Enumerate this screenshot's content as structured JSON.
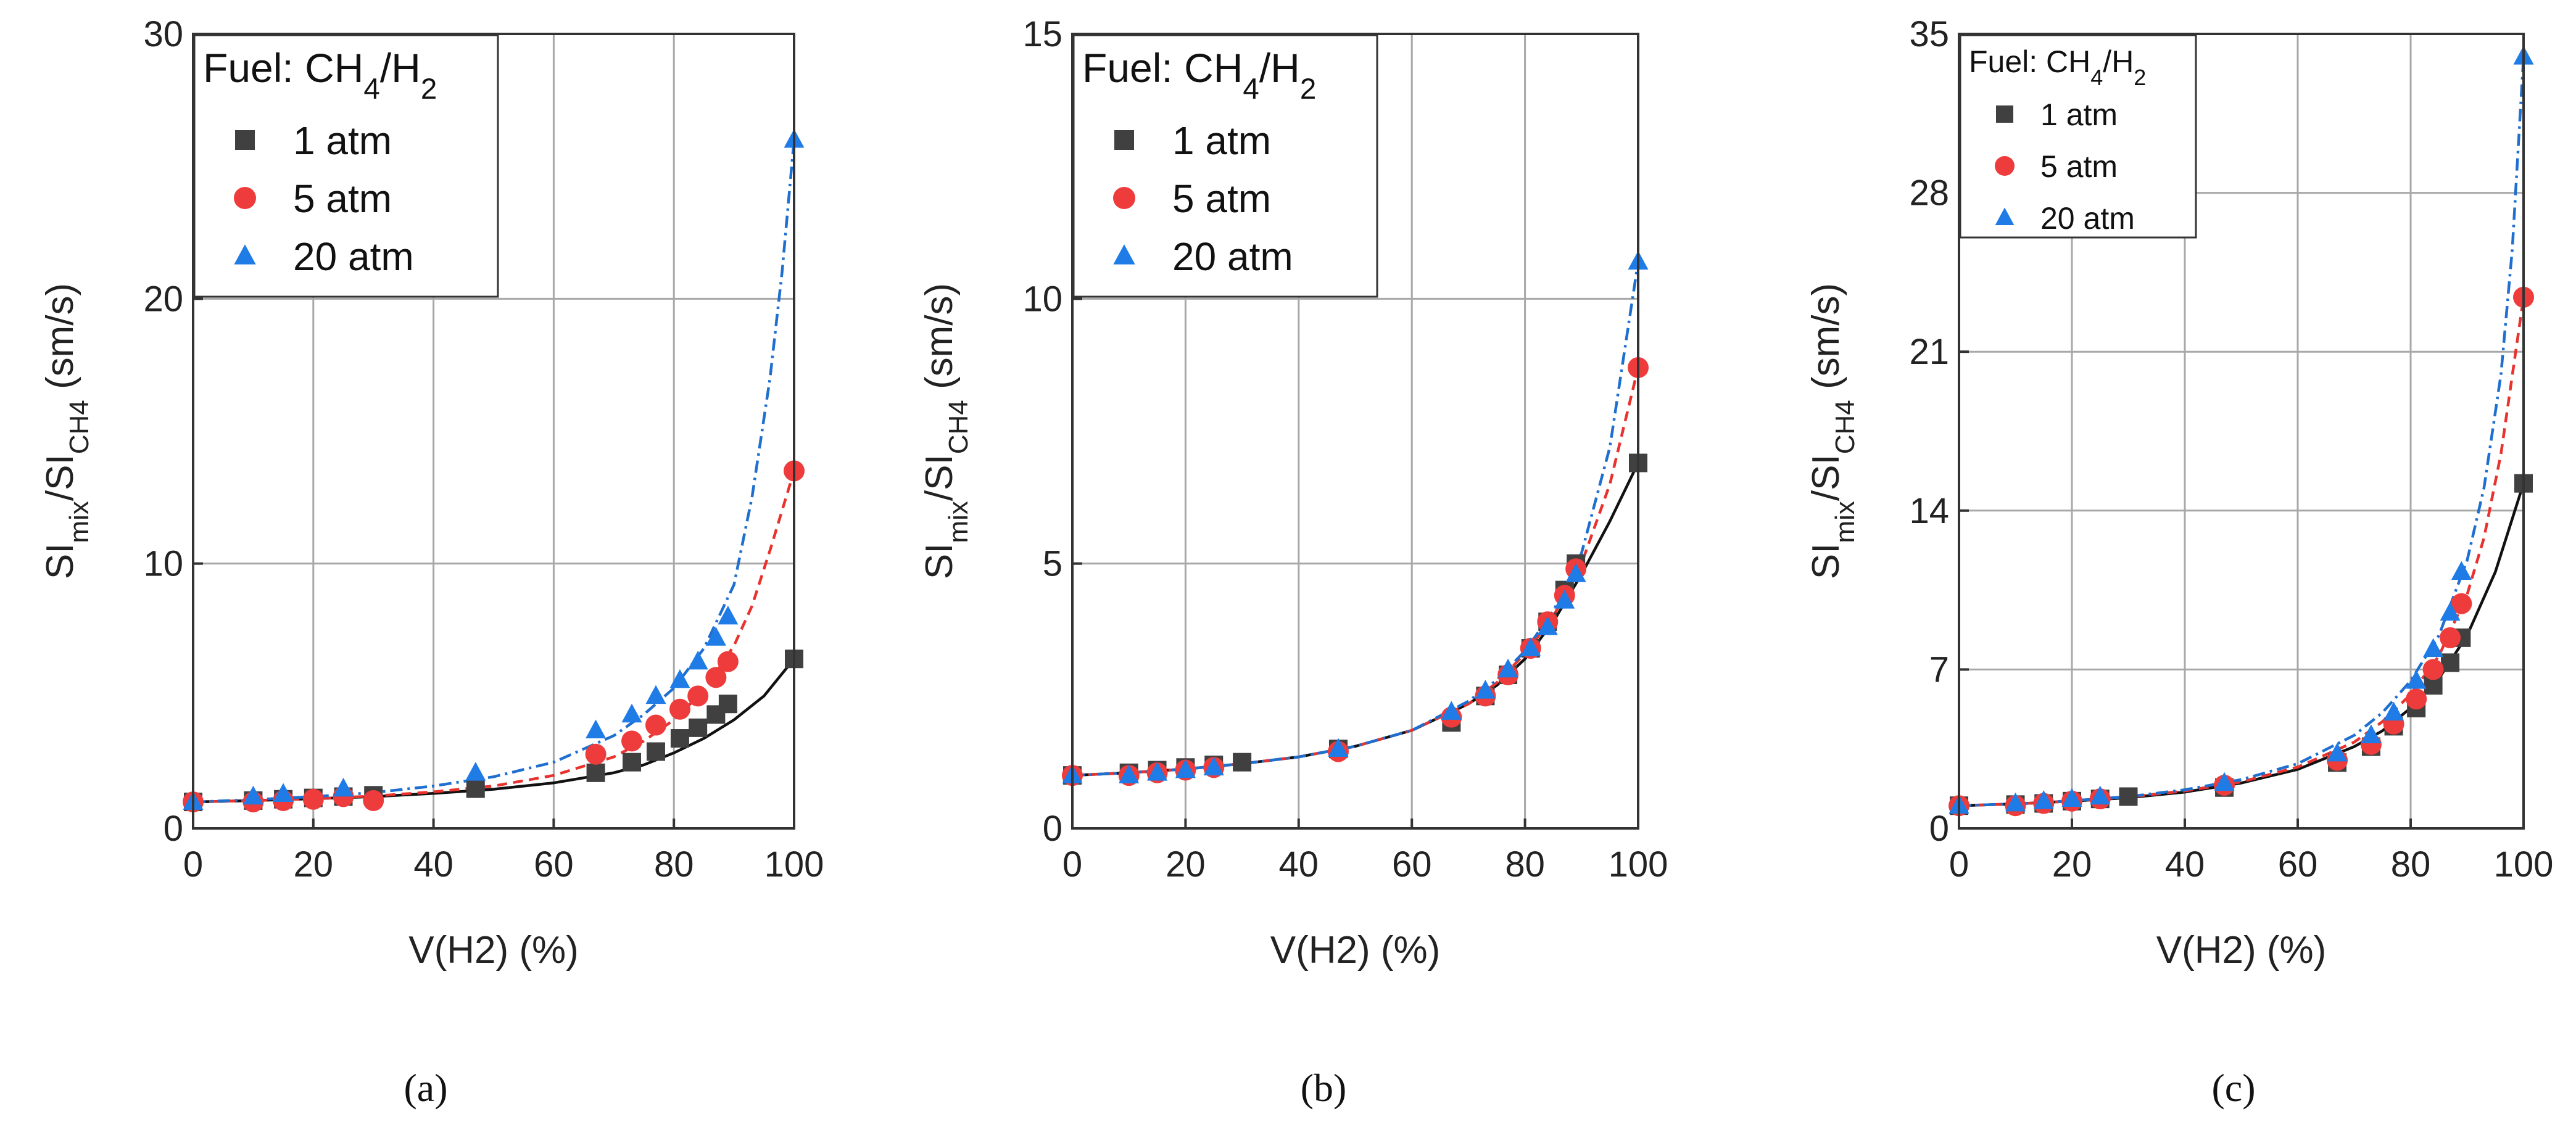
{
  "colors": {
    "p1": "#404040",
    "p5": "#ee3b3b",
    "p20": "#1f7be6",
    "fit1": "#111111",
    "fit5": "#e8322e",
    "fit20": "#1f6fd0"
  },
  "chart_data": [
    {
      "type": "scatter",
      "title": "",
      "xlabel": "V(H2) (%)",
      "ylabel_main": "SI",
      "ylabel_sub1": "mix",
      "ylabel_slash": "/SI",
      "ylabel_sub2": "CH4",
      "ylabel_units": " (sm/s)",
      "xlim": [
        0,
        100
      ],
      "ylim": [
        0,
        30
      ],
      "xticks": [
        0,
        20,
        40,
        60,
        80,
        100
      ],
      "yticks": [
        0,
        10,
        20,
        30
      ],
      "grid": true,
      "legend_position": "top-left",
      "legend_title": {
        "prefix": "Fuel: CH",
        "s1": "4",
        "mid": "/H",
        "s2": "2"
      },
      "legend_font": "large",
      "caption": "(a)",
      "series": [
        {
          "name": "1 atm",
          "marker": "square",
          "fit": "solid",
          "x": [
            0,
            10,
            15,
            20,
            25,
            30,
            47,
            67,
            73,
            77,
            81,
            84,
            87,
            89,
            100
          ],
          "y": [
            1.0,
            1.05,
            1.1,
            1.15,
            1.2,
            1.25,
            1.5,
            2.1,
            2.5,
            2.9,
            3.4,
            3.8,
            4.3,
            4.7,
            6.4
          ],
          "fit_x": [
            0,
            10,
            20,
            30,
            40,
            50,
            60,
            70,
            75,
            80,
            85,
            90,
            95,
            100
          ],
          "fit_y": [
            1.0,
            1.05,
            1.12,
            1.2,
            1.32,
            1.48,
            1.72,
            2.1,
            2.4,
            2.85,
            3.4,
            4.1,
            5.0,
            6.4
          ]
        },
        {
          "name": "5 atm",
          "marker": "circle",
          "fit": "dashed",
          "x": [
            0,
            10,
            15,
            20,
            25,
            30,
            67,
            73,
            77,
            81,
            84,
            87,
            89,
            100
          ],
          "y": [
            1.0,
            1.0,
            1.05,
            1.1,
            1.2,
            1.05,
            2.8,
            3.3,
            3.9,
            4.5,
            5.0,
            5.7,
            6.3,
            13.5
          ],
          "fit_x": [
            0,
            10,
            20,
            30,
            40,
            50,
            60,
            70,
            75,
            80,
            85,
            90,
            93,
            96,
            100
          ],
          "fit_y": [
            1.0,
            1.05,
            1.12,
            1.22,
            1.38,
            1.6,
            2.0,
            2.7,
            3.3,
            4.1,
            5.2,
            6.9,
            8.4,
            10.5,
            13.5
          ]
        },
        {
          "name": "20 atm",
          "marker": "triangle",
          "fit": "dashdot",
          "x": [
            0,
            10,
            15,
            25,
            47,
            67,
            73,
            77,
            81,
            84,
            87,
            89,
            100
          ],
          "y": [
            1.0,
            1.2,
            1.3,
            1.5,
            2.1,
            3.7,
            4.3,
            5.0,
            5.6,
            6.3,
            7.2,
            8.0,
            26.0
          ],
          "fit_x": [
            0,
            10,
            20,
            30,
            40,
            50,
            60,
            70,
            75,
            80,
            85,
            90,
            93,
            96,
            98,
            100
          ],
          "fit_y": [
            1.0,
            1.08,
            1.2,
            1.35,
            1.6,
            1.95,
            2.5,
            3.5,
            4.3,
            5.3,
            6.8,
            9.2,
            12.5,
            17.0,
            21.0,
            26.0
          ]
        }
      ]
    },
    {
      "type": "scatter",
      "title": "",
      "xlabel": "V(H2) (%)",
      "ylabel_main": "SI",
      "ylabel_sub1": "mix",
      "ylabel_slash": "/SI",
      "ylabel_sub2": "CH4",
      "ylabel_units": " (sm/s)",
      "xlim": [
        0,
        100
      ],
      "ylim": [
        0,
        15
      ],
      "xticks": [
        0,
        20,
        40,
        60,
        80,
        100
      ],
      "yticks": [
        0,
        5,
        10,
        15
      ],
      "grid": true,
      "legend_position": "top-left",
      "legend_title": {
        "prefix": "Fuel: CH",
        "s1": "4",
        "mid": "/H",
        "s2": "2"
      },
      "legend_font": "large",
      "caption": "(b)",
      "series": [
        {
          "name": "1 atm",
          "marker": "square",
          "fit": "solid",
          "x": [
            0,
            10,
            15,
            20,
            25,
            30,
            47,
            67,
            73,
            77,
            81,
            84,
            87,
            89,
            100
          ],
          "y": [
            1.0,
            1.05,
            1.1,
            1.15,
            1.2,
            1.25,
            1.5,
            2.0,
            2.5,
            2.9,
            3.4,
            3.9,
            4.5,
            5.0,
            6.9
          ],
          "fit_x": [
            0,
            10,
            20,
            30,
            40,
            50,
            60,
            70,
            75,
            80,
            85,
            90,
            95,
            100
          ],
          "fit_y": [
            1.0,
            1.05,
            1.12,
            1.22,
            1.35,
            1.55,
            1.85,
            2.35,
            2.7,
            3.2,
            3.9,
            4.8,
            5.8,
            6.9
          ]
        },
        {
          "name": "5 atm",
          "marker": "circle",
          "fit": "dashed",
          "x": [
            0,
            10,
            15,
            20,
            25,
            47,
            67,
            73,
            77,
            81,
            84,
            87,
            89,
            100
          ],
          "y": [
            1.0,
            1.0,
            1.05,
            1.1,
            1.15,
            1.45,
            2.1,
            2.5,
            2.9,
            3.4,
            3.9,
            4.4,
            4.9,
            8.7
          ],
          "fit_x": [
            0,
            10,
            20,
            30,
            40,
            50,
            60,
            70,
            75,
            80,
            85,
            90,
            95,
            100
          ],
          "fit_y": [
            1.0,
            1.05,
            1.12,
            1.22,
            1.35,
            1.55,
            1.85,
            2.35,
            2.75,
            3.3,
            4.0,
            5.0,
            6.5,
            8.7
          ]
        },
        {
          "name": "20 atm",
          "marker": "triangle",
          "fit": "dashdot",
          "x": [
            0,
            10,
            15,
            20,
            25,
            47,
            67,
            73,
            77,
            81,
            84,
            87,
            89,
            100
          ],
          "y": [
            1.0,
            1.0,
            1.05,
            1.1,
            1.15,
            1.5,
            2.2,
            2.6,
            3.0,
            3.4,
            3.8,
            4.3,
            4.8,
            10.7
          ],
          "fit_x": [
            0,
            10,
            20,
            30,
            40,
            50,
            60,
            70,
            75,
            80,
            85,
            90,
            95,
            100
          ],
          "fit_y": [
            1.0,
            1.05,
            1.12,
            1.22,
            1.35,
            1.55,
            1.85,
            2.4,
            2.8,
            3.35,
            4.1,
            5.2,
            7.2,
            10.7
          ]
        }
      ]
    },
    {
      "type": "scatter",
      "title": "",
      "xlabel": "V(H2) (%)",
      "ylabel_main": "SI",
      "ylabel_sub1": "mix",
      "ylabel_slash": "/SI",
      "ylabel_sub2": "CH4",
      "ylabel_units": " (sm/s)",
      "xlim": [
        0,
        100
      ],
      "ylim": [
        0,
        35
      ],
      "xticks": [
        0,
        20,
        40,
        60,
        80,
        100
      ],
      "yticks": [
        0,
        7,
        14,
        21,
        28,
        35
      ],
      "grid": true,
      "legend_position": "top-left",
      "legend_title": {
        "prefix": "Fuel: CH",
        "s1": "4",
        "mid": "/H",
        "s2": "2"
      },
      "legend_font": "small",
      "caption": "(c)",
      "series": [
        {
          "name": "1 atm",
          "marker": "square",
          "fit": "solid",
          "x": [
            0,
            10,
            15,
            20,
            25,
            30,
            47,
            67,
            73,
            77,
            81,
            84,
            87,
            89,
            100
          ],
          "y": [
            1.0,
            1.05,
            1.1,
            1.2,
            1.3,
            1.4,
            1.8,
            2.9,
            3.6,
            4.5,
            5.3,
            6.3,
            7.3,
            8.4,
            15.2
          ],
          "fit_x": [
            0,
            10,
            20,
            30,
            40,
            50,
            60,
            70,
            75,
            80,
            85,
            90,
            95,
            100
          ],
          "fit_y": [
            1.0,
            1.08,
            1.2,
            1.35,
            1.6,
            2.0,
            2.6,
            3.6,
            4.3,
            5.3,
            6.6,
            8.5,
            11.3,
            15.2
          ]
        },
        {
          "name": "5 atm",
          "marker": "circle",
          "fit": "dashed",
          "x": [
            0,
            10,
            15,
            20,
            25,
            47,
            67,
            73,
            77,
            81,
            84,
            87,
            89,
            100
          ],
          "y": [
            1.0,
            1.0,
            1.1,
            1.2,
            1.3,
            1.9,
            3.0,
            3.7,
            4.6,
            5.7,
            7.0,
            8.4,
            9.9,
            23.4
          ],
          "fit_x": [
            0,
            10,
            20,
            30,
            40,
            50,
            60,
            70,
            75,
            80,
            85,
            90,
            93,
            96,
            100
          ],
          "fit_y": [
            1.0,
            1.08,
            1.2,
            1.38,
            1.65,
            2.05,
            2.7,
            3.8,
            4.7,
            5.9,
            7.6,
            10.3,
            12.8,
            16.5,
            23.4
          ]
        },
        {
          "name": "20 atm",
          "marker": "triangle",
          "fit": "dashdot",
          "x": [
            0,
            10,
            15,
            20,
            25,
            47,
            67,
            73,
            77,
            81,
            84,
            87,
            89,
            100
          ],
          "y": [
            1.0,
            1.1,
            1.2,
            1.3,
            1.4,
            2.0,
            3.3,
            4.1,
            5.1,
            6.5,
            7.9,
            9.5,
            11.3,
            34.0
          ],
          "fit_x": [
            0,
            10,
            20,
            30,
            40,
            50,
            60,
            70,
            75,
            80,
            85,
            90,
            93,
            96,
            98,
            100
          ],
          "fit_y": [
            1.0,
            1.08,
            1.22,
            1.4,
            1.7,
            2.15,
            2.85,
            4.1,
            5.1,
            6.5,
            8.5,
            11.8,
            15.0,
            20.0,
            25.5,
            34.0
          ]
        }
      ]
    }
  ]
}
